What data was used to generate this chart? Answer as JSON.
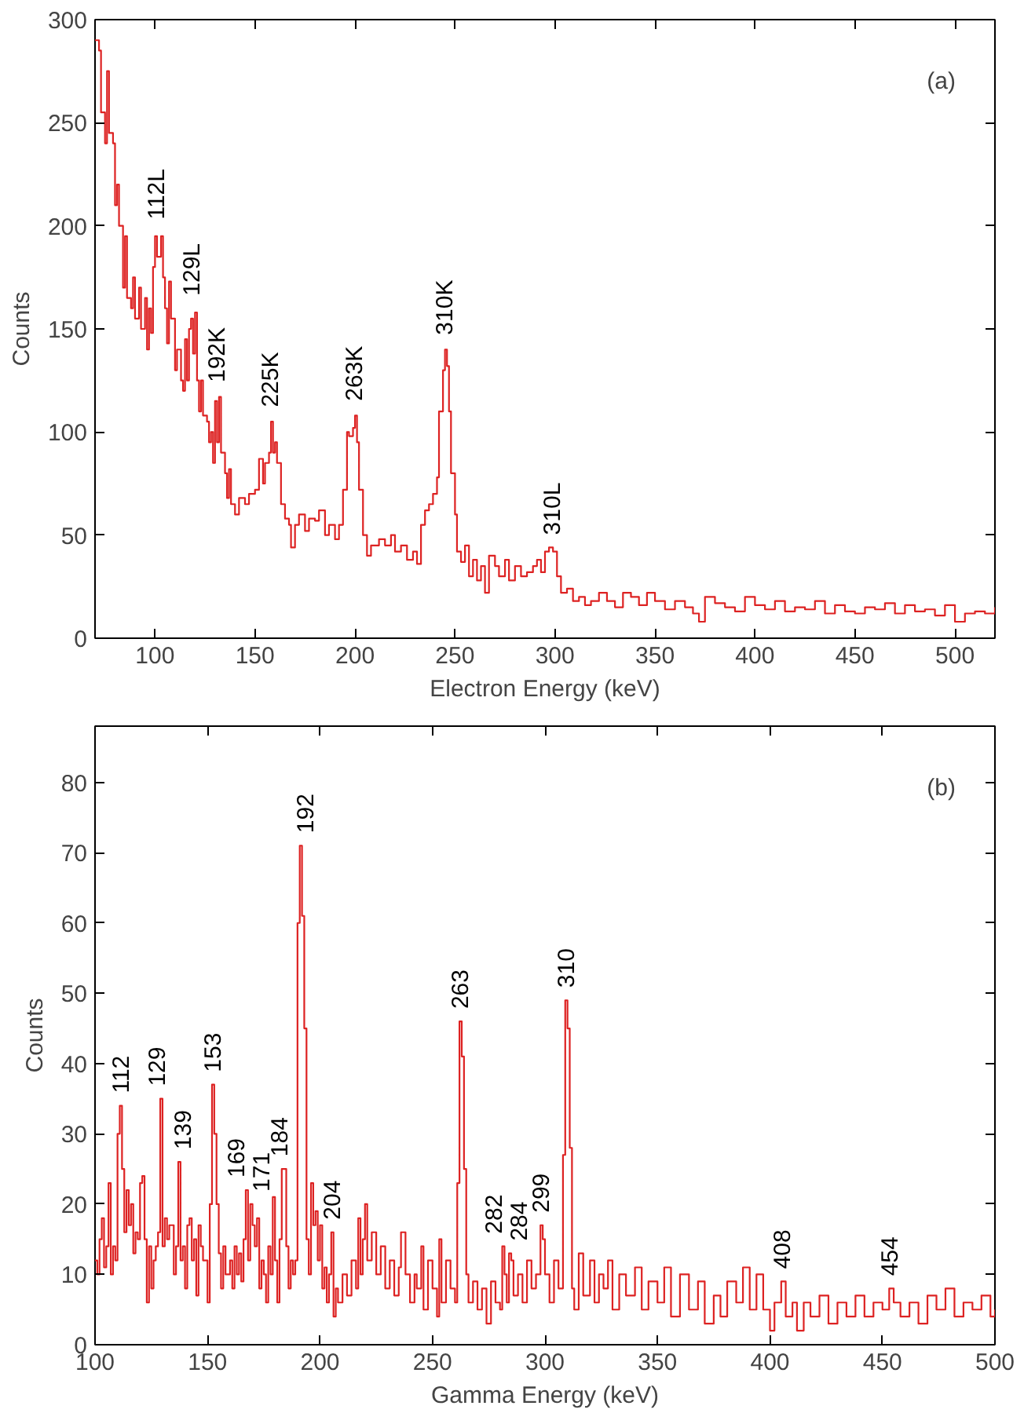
{
  "chart_data": [
    {
      "type": "step",
      "xlabel": "Electron Energy (keV)",
      "ylabel": "Counts",
      "xlim": [
        70,
        520
      ],
      "ylim": [
        0,
        300
      ],
      "xticks": [
        100,
        150,
        200,
        250,
        300,
        350,
        400,
        450,
        500
      ],
      "yticks": [
        0,
        50,
        100,
        150,
        200,
        250,
        300
      ],
      "annotations": [
        "(a)",
        {
          "text": "112L",
          "x": 101,
          "y": 197
        },
        {
          "text": "129L",
          "x": 119,
          "y": 160
        },
        {
          "text": "192K",
          "x": 131,
          "y": 118
        },
        {
          "text": "225K",
          "x": 158,
          "y": 106
        },
        {
          "text": "263K",
          "x": 200,
          "y": 109
        },
        {
          "text": "310K",
          "x": 245,
          "y": 141
        },
        {
          "text": "310L",
          "x": 299,
          "y": 44
        }
      ],
      "series": [
        {
          "color": "#dd2222",
          "x": [
            70,
            72,
            73,
            75,
            76,
            77,
            79,
            80,
            81,
            82,
            84,
            85,
            86,
            88,
            89,
            90,
            92,
            93,
            95,
            96,
            97,
            98,
            99,
            100,
            101,
            103,
            104,
            105,
            106,
            107,
            108,
            110,
            111,
            113,
            114,
            115,
            116,
            117,
            118,
            119,
            120,
            121,
            122,
            123,
            124,
            126,
            127,
            128,
            129,
            130,
            131,
            132,
            133,
            135,
            136,
            137,
            138,
            140,
            142,
            145,
            147,
            150,
            152,
            154,
            155,
            157,
            158,
            159,
            160,
            161,
            163,
            165,
            167,
            168,
            170,
            172,
            175,
            177,
            180,
            182,
            185,
            187,
            190,
            192,
            194,
            196,
            197,
            199,
            200,
            201,
            202,
            204,
            206,
            208,
            212,
            215,
            218,
            220,
            223,
            226,
            229,
            231,
            233,
            235,
            237,
            239,
            241,
            242,
            244,
            245,
            246,
            247,
            248,
            250,
            251,
            253,
            255,
            257,
            259,
            261,
            263,
            265,
            267,
            270,
            272,
            275,
            277,
            280,
            283,
            286,
            289,
            291,
            293,
            295,
            297,
            299,
            301,
            303,
            306,
            309,
            312,
            315,
            318,
            322,
            326,
            330,
            334,
            338,
            342,
            346,
            350,
            355,
            360,
            365,
            369,
            372,
            375,
            380,
            385,
            390,
            395,
            400,
            405,
            410,
            415,
            420,
            425,
            430,
            435,
            440,
            445,
            450,
            455,
            460,
            465,
            470,
            475,
            480,
            485,
            490,
            495,
            500,
            505,
            510,
            515,
            520
          ],
          "values": [
            290,
            285,
            255,
            240,
            275,
            245,
            240,
            210,
            220,
            200,
            170,
            195,
            165,
            160,
            175,
            155,
            170,
            150,
            165,
            140,
            160,
            148,
            180,
            195,
            185,
            195,
            175,
            160,
            143,
            173,
            155,
            130,
            140,
            125,
            120,
            145,
            125,
            150,
            155,
            138,
            158,
            125,
            110,
            125,
            108,
            105,
            95,
            100,
            85,
            115,
            95,
            117,
            90,
            80,
            68,
            82,
            65,
            60,
            68,
            65,
            70,
            72,
            87,
            75,
            85,
            90,
            105,
            90,
            95,
            85,
            65,
            58,
            55,
            44,
            55,
            60,
            52,
            58,
            57,
            62,
            50,
            55,
            48,
            55,
            72,
            100,
            98,
            102,
            108,
            95,
            72,
            50,
            40,
            45,
            48,
            45,
            50,
            42,
            45,
            38,
            42,
            36,
            55,
            62,
            65,
            70,
            78,
            110,
            130,
            140,
            132,
            110,
            80,
            60,
            42,
            37,
            45,
            30,
            38,
            28,
            35,
            22,
            40,
            35,
            30,
            38,
            28,
            35,
            30,
            32,
            35,
            38,
            32,
            42,
            44,
            42,
            30,
            22,
            24,
            18,
            20,
            16,
            18,
            22,
            18,
            15,
            22,
            20,
            16,
            22,
            18,
            14,
            18,
            15,
            12,
            8,
            20,
            17,
            15,
            13,
            20,
            16,
            14,
            18,
            13,
            15,
            14,
            18,
            12,
            16,
            13,
            12,
            15,
            14,
            17,
            12,
            16,
            13,
            14,
            11,
            16,
            8,
            12,
            13,
            12,
            15
          ]
        }
      ]
    },
    {
      "type": "step",
      "xlabel": "Gamma Energy (keV)",
      "ylabel": "Counts",
      "xlim": [
        100,
        500
      ],
      "ylim": [
        0,
        88
      ],
      "xticks": [
        100,
        150,
        200,
        250,
        300,
        350,
        400,
        450,
        500
      ],
      "yticks": [
        0,
        10,
        20,
        30,
        40,
        50,
        60,
        70,
        80
      ],
      "annotations": [
        "(b)",
        {
          "text": "112",
          "x": 111,
          "y": 34
        },
        {
          "text": "129",
          "x": 129,
          "y": 35
        },
        {
          "text": "139",
          "x": 137,
          "y": 26
        },
        {
          "text": "153",
          "x": 152,
          "y": 37
        },
        {
          "text": "169",
          "x": 167,
          "y": 22
        },
        {
          "text": "171",
          "x": 169,
          "y": 20
        },
        {
          "text": "184",
          "x": 184,
          "y": 25
        },
        {
          "text": "192",
          "x": 191,
          "y": 71
        },
        {
          "text": "204",
          "x": 205,
          "y": 16
        },
        {
          "text": "263",
          "x": 262,
          "y": 46
        },
        {
          "text": "282",
          "x": 281,
          "y": 14
        },
        {
          "text": "284",
          "x": 284,
          "y": 13
        },
        {
          "text": "299",
          "x": 298,
          "y": 17
        },
        {
          "text": "310",
          "x": 309,
          "y": 49
        },
        {
          "text": "408",
          "x": 405,
          "y": 9
        },
        {
          "text": "454",
          "x": 453,
          "y": 8
        }
      ],
      "series": [
        {
          "color": "#dd2222",
          "x": [
            100,
            101,
            102,
            103,
            104,
            105,
            106,
            107,
            108,
            109,
            110,
            111,
            112,
            113,
            114,
            115,
            116,
            117,
            118,
            119,
            120,
            121,
            122,
            123,
            124,
            125,
            126,
            127,
            128,
            129,
            130,
            131,
            132,
            133,
            135,
            136,
            137,
            138,
            139,
            140,
            141,
            142,
            143,
            144,
            145,
            146,
            147,
            148,
            150,
            151,
            152,
            153,
            154,
            155,
            156,
            157,
            158,
            160,
            161,
            162,
            163,
            164,
            165,
            166,
            167,
            168,
            169,
            170,
            171,
            172,
            173,
            174,
            175,
            176,
            177,
            178,
            179,
            180,
            181,
            182,
            183,
            184,
            185,
            186,
            187,
            188,
            189,
            190,
            191,
            192,
            193,
            194,
            195,
            196,
            197,
            198,
            199,
            200,
            201,
            202,
            203,
            204,
            205,
            206,
            207,
            208,
            210,
            212,
            214,
            216,
            217,
            218,
            219,
            220,
            221,
            223,
            225,
            227,
            229,
            231,
            233,
            235,
            236,
            238,
            240,
            242,
            243,
            245,
            246,
            248,
            250,
            252,
            253,
            254,
            256,
            258,
            260,
            261,
            262,
            263,
            264,
            265,
            266,
            268,
            270,
            272,
            274,
            276,
            278,
            280,
            281,
            282,
            283,
            284,
            285,
            286,
            288,
            290,
            292,
            294,
            296,
            298,
            299,
            300,
            302,
            304,
            306,
            308,
            309,
            310,
            311,
            312,
            313,
            315,
            317,
            320,
            322,
            324,
            326,
            328,
            330,
            333,
            336,
            340,
            343,
            346,
            350,
            353,
            356,
            360,
            364,
            368,
            371,
            375,
            378,
            381,
            385,
            388,
            391,
            394,
            397,
            400,
            402,
            405,
            407,
            410,
            412,
            415,
            418,
            422,
            426,
            430,
            434,
            438,
            442,
            446,
            450,
            453,
            455,
            458,
            462,
            466,
            470,
            474,
            478,
            482,
            486,
            490,
            494,
            498,
            500
          ],
          "values": [
            12,
            10,
            15,
            18,
            11,
            14,
            23,
            10,
            14,
            12,
            30,
            34,
            25,
            16,
            22,
            17,
            20,
            13,
            16,
            15,
            23,
            24,
            15,
            6,
            14,
            8,
            12,
            14,
            16,
            35,
            14,
            18,
            15,
            17,
            10,
            14,
            26,
            12,
            14,
            8,
            17,
            18,
            12,
            15,
            7,
            17,
            14,
            12,
            6,
            20,
            37,
            30,
            20,
            13,
            8,
            14,
            10,
            12,
            8,
            14,
            10,
            13,
            9,
            15,
            22,
            12,
            20,
            17,
            14,
            18,
            8,
            12,
            10,
            6,
            14,
            10,
            21,
            12,
            6,
            15,
            25,
            25,
            14,
            8,
            12,
            10,
            12,
            60,
            71,
            61,
            45,
            15,
            10,
            23,
            17,
            19,
            12,
            17,
            8,
            11,
            6,
            10,
            16,
            4,
            8,
            6,
            10,
            7,
            12,
            8,
            18,
            10,
            15,
            20,
            12,
            16,
            10,
            14,
            8,
            12,
            7,
            11,
            16,
            10,
            6,
            10,
            8,
            14,
            5,
            12,
            8,
            4,
            15,
            6,
            12,
            8,
            6,
            23,
            46,
            41,
            25,
            10,
            6,
            9,
            5,
            8,
            3,
            9,
            6,
            5,
            14,
            10,
            6,
            13,
            12,
            7,
            10,
            6,
            12,
            8,
            10,
            17,
            15,
            10,
            6,
            12,
            8,
            27,
            49,
            45,
            28,
            8,
            5,
            13,
            7,
            12,
            6,
            10,
            8,
            12,
            5,
            10,
            7,
            11,
            5,
            9,
            6,
            11,
            4,
            10,
            5,
            9,
            3,
            7,
            4,
            9,
            6,
            11,
            5,
            10,
            5,
            2,
            6,
            9,
            4,
            6,
            2,
            6,
            4,
            7,
            3,
            6,
            4,
            7,
            4,
            6,
            5,
            8,
            6,
            4,
            6,
            3,
            7,
            5,
            8,
            4,
            6,
            5,
            7,
            4,
            5
          ]
        }
      ]
    }
  ]
}
